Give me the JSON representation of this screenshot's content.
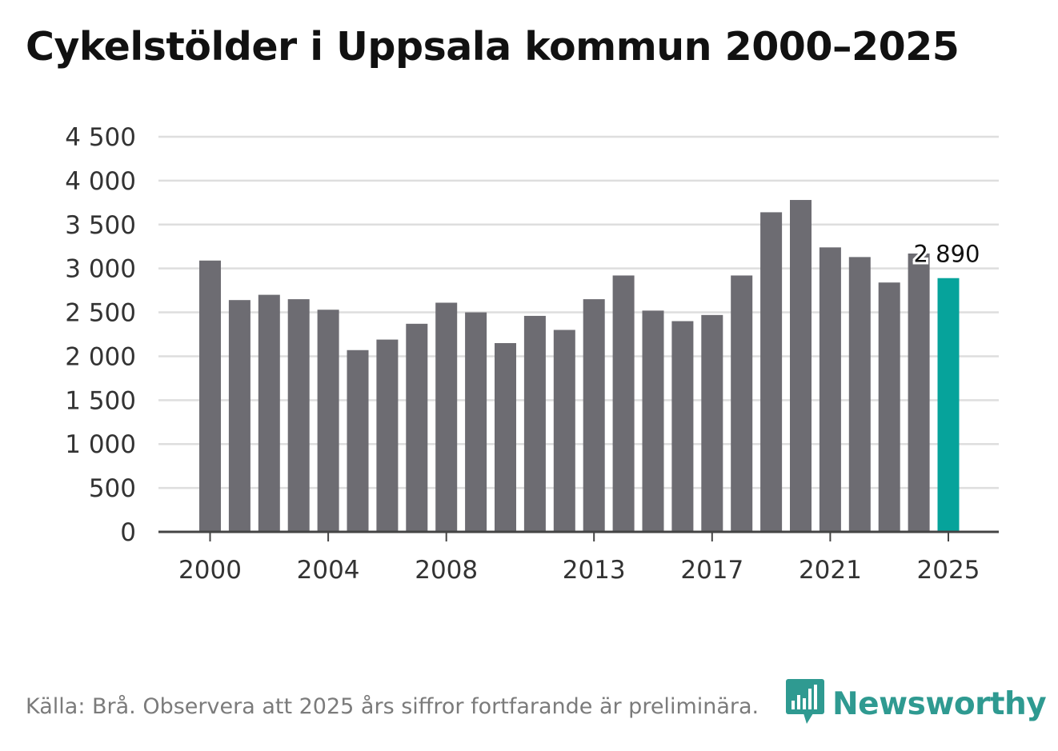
{
  "colors": {
    "bar": "#6d6c72",
    "highlight": "#06a39b",
    "grid": "#dedede",
    "axis": "#444444",
    "text": "#333333",
    "brand": "#2f9a91"
  },
  "chart_data": {
    "type": "bar",
    "title": "Cykelstölder i Uppsala kommun 2000–2025",
    "xlabel": "",
    "ylabel": "",
    "ylim": [
      0,
      4500
    ],
    "yticks": [
      0,
      500,
      1000,
      1500,
      2000,
      2500,
      3000,
      3500,
      4000,
      4500
    ],
    "ytick_labels": [
      "0",
      "500",
      "1 000",
      "1 500",
      "2 000",
      "2 500",
      "3 000",
      "3 500",
      "4 000",
      "4 500"
    ],
    "xtick_labels": [
      "2000",
      "2004",
      "2008",
      "2013",
      "2017",
      "2021",
      "2025"
    ],
    "categories": [
      "2000",
      "2001",
      "2002",
      "2003",
      "2004",
      "2005",
      "2006",
      "2007",
      "2008",
      "2009",
      "2010",
      "2011",
      "2012",
      "2013",
      "2014",
      "2015",
      "2016",
      "2017",
      "2018",
      "2019",
      "2020",
      "2021",
      "2022",
      "2023",
      "2024",
      "2025"
    ],
    "values": [
      3090,
      2640,
      2700,
      2650,
      2530,
      2070,
      2190,
      2370,
      2610,
      2500,
      2150,
      2460,
      2300,
      2650,
      2920,
      2520,
      2400,
      2470,
      2920,
      3640,
      3780,
      3240,
      3130,
      2840,
      3170,
      2890
    ],
    "highlight_category": "2025",
    "annotation": "2 890",
    "grid": true,
    "legend": "none"
  },
  "footer": {
    "source": "Källa: Brå. Observera att 2025 års siffror fortfarande är preliminära."
  },
  "brand": {
    "name": "Newsworthy",
    "icon": "newsworthy-logo-icon"
  }
}
